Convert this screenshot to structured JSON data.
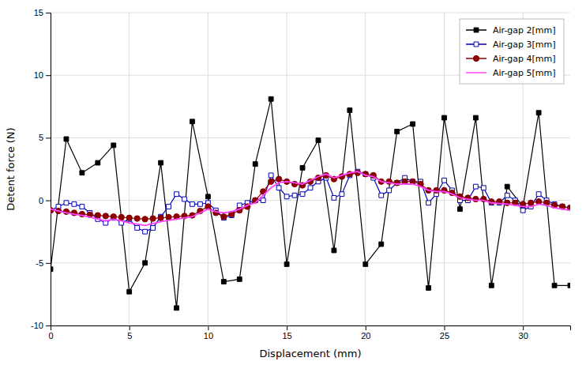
{
  "chart_data": {
    "type": "line",
    "x_label": "Displacement (mm)",
    "y_label": "Detent force (N)",
    "xlim": [
      0,
      33
    ],
    "ylim": [
      -10,
      15
    ],
    "xticks": [
      0,
      5,
      10,
      15,
      20,
      25,
      30
    ],
    "yticks": [
      -10,
      -5,
      0,
      5,
      10,
      15
    ],
    "grid": true,
    "legend": "upper right",
    "series": [
      {
        "name": "Air-gap 2[mm]",
        "color": "#000000",
        "marker": "square",
        "line_style": "solid",
        "x": [
          0,
          1,
          2,
          3,
          4,
          5,
          6,
          7,
          8,
          9,
          10,
          11,
          12,
          13,
          14,
          15,
          16,
          17,
          18,
          19,
          20,
          21,
          22,
          23,
          24,
          25,
          26,
          27,
          28,
          29,
          30,
          31,
          32,
          33
        ],
        "values": [
          -5.5,
          4.9,
          2.2,
          3.0,
          4.4,
          -7.3,
          -5.0,
          3.0,
          -8.6,
          6.3,
          0.3,
          -6.5,
          -6.3,
          2.9,
          8.1,
          -5.1,
          2.6,
          4.8,
          -4.0,
          7.2,
          -5.1,
          -3.5,
          5.5,
          6.1,
          -7.0,
          6.6,
          -0.7,
          6.6,
          -6.8,
          1.1,
          -0.5,
          7.0,
          -6.8,
          -6.8
        ]
      },
      {
        "name": "Air-gap 3[mm]",
        "color": "#0000bb",
        "marker": "open-square",
        "line_style": "solid",
        "x": [
          0,
          0.5,
          1,
          1.5,
          2,
          2.5,
          3,
          3.5,
          4,
          4.5,
          5,
          5.5,
          6,
          6.5,
          7,
          7.5,
          8,
          8.5,
          9,
          9.5,
          10,
          10.5,
          11,
          11.5,
          12,
          12.5,
          13,
          13.5,
          14,
          14.5,
          15,
          15.5,
          16,
          16.5,
          17,
          17.5,
          18,
          18.5,
          19,
          19.5,
          20,
          20.5,
          21,
          21.5,
          22,
          22.5,
          23,
          23.5,
          24,
          24.5,
          25,
          25.5,
          26,
          26.5,
          27,
          27.5,
          28,
          28.5,
          29,
          29.5,
          30,
          30.5,
          31,
          31.5,
          32,
          32.5,
          33
        ],
        "values": [
          -0.8,
          -0.5,
          -0.2,
          -0.3,
          -0.5,
          -1.0,
          -1.5,
          -1.8,
          -1.4,
          -1.8,
          -1.5,
          -2.2,
          -2.5,
          -2.2,
          -1.3,
          -0.5,
          0.5,
          0.1,
          -0.3,
          -0.3,
          -0.2,
          -0.8,
          -1.4,
          -1.2,
          -0.4,
          -0.2,
          0.0,
          0.0,
          2.0,
          1.0,
          0.3,
          0.4,
          0.5,
          1.0,
          1.5,
          1.8,
          0.2,
          0.5,
          2.0,
          2.3,
          2.1,
          1.8,
          0.4,
          0.8,
          1.4,
          1.8,
          1.5,
          1.5,
          -0.2,
          0.5,
          1.6,
          0.8,
          0.0,
          0.0,
          1.1,
          1.0,
          -0.2,
          -0.2,
          0.4,
          0.0,
          -0.8,
          -0.5,
          0.5,
          0.0,
          -0.3,
          -0.5,
          -0.6
        ]
      },
      {
        "name": "Air-gap 4[mm]",
        "color": "#8b0000",
        "marker": "circle",
        "line_style": "solid",
        "x": [
          0,
          0.5,
          1,
          1.5,
          2,
          2.5,
          3,
          3.5,
          4,
          4.5,
          5,
          5.5,
          6,
          6.5,
          7,
          7.5,
          8,
          8.5,
          9,
          9.5,
          10,
          10.5,
          11,
          11.5,
          12,
          12.5,
          13,
          13.5,
          14,
          14.5,
          15,
          15.5,
          16,
          16.5,
          17,
          17.5,
          18,
          18.5,
          19,
          19.5,
          20,
          20.5,
          21,
          21.5,
          22,
          22.5,
          23,
          23.5,
          24,
          24.5,
          25,
          25.5,
          26,
          26.5,
          27,
          27.5,
          28,
          28.5,
          29,
          29.5,
          30,
          30.5,
          31,
          31.5,
          32,
          32.5,
          33
        ],
        "values": [
          -0.8,
          -0.85,
          -0.9,
          -1.0,
          -1.1,
          -1.15,
          -1.2,
          -1.25,
          -1.3,
          -1.35,
          -1.4,
          -1.45,
          -1.5,
          -1.45,
          -1.4,
          -1.35,
          -1.3,
          -1.25,
          -1.2,
          -0.85,
          -0.5,
          -1.0,
          -1.3,
          -1.1,
          -0.8,
          -0.5,
          0.0,
          0.7,
          1.5,
          1.7,
          1.5,
          1.3,
          1.2,
          1.5,
          1.8,
          2.0,
          1.7,
          1.9,
          2.1,
          2.2,
          2.1,
          2.0,
          1.5,
          1.5,
          1.4,
          1.5,
          1.5,
          1.3,
          0.8,
          0.8,
          0.8,
          0.6,
          0.3,
          0.2,
          0.1,
          0.1,
          -0.1,
          -0.1,
          -0.2,
          -0.2,
          -0.3,
          -0.2,
          -0.1,
          -0.2,
          -0.4,
          -0.5,
          -0.6
        ]
      },
      {
        "name": "Air-gap 5[mm]",
        "color": "#ff44ff",
        "marker": "none",
        "line_style": "solid",
        "x": [
          0,
          0.5,
          1,
          1.5,
          2,
          2.5,
          3,
          3.5,
          4,
          4.5,
          5,
          5.5,
          6,
          6.5,
          7,
          7.5,
          8,
          8.5,
          9,
          9.5,
          10,
          10.5,
          11,
          11.5,
          12,
          12.5,
          13,
          13.5,
          14,
          14.5,
          15,
          15.5,
          16,
          16.5,
          17,
          17.5,
          18,
          18.5,
          19,
          19.5,
          20,
          20.5,
          21,
          21.5,
          22,
          22.5,
          23,
          23.5,
          24,
          24.5,
          25,
          25.5,
          26,
          26.5,
          27,
          27.5,
          28,
          28.5,
          29,
          29.5,
          30,
          30.5,
          31,
          31.5,
          32,
          32.5,
          33
        ],
        "values": [
          -0.7,
          -0.85,
          -1.0,
          -1.1,
          -1.2,
          -1.35,
          -1.5,
          -1.65,
          -1.5,
          -1.65,
          -1.8,
          -1.9,
          -2.0,
          -1.85,
          -1.7,
          -1.6,
          -1.5,
          -1.4,
          -1.3,
          -1.0,
          -0.7,
          -0.9,
          -1.0,
          -0.9,
          -0.7,
          -0.4,
          -0.2,
          0.4,
          1.0,
          1.4,
          1.5,
          1.4,
          1.3,
          1.6,
          1.9,
          2.1,
          1.8,
          2.0,
          2.2,
          2.3,
          2.0,
          1.9,
          1.5,
          1.4,
          1.3,
          1.3,
          1.3,
          1.1,
          0.8,
          0.7,
          0.7,
          0.5,
          0.2,
          0.1,
          0.0,
          0.0,
          -0.2,
          -0.25,
          -0.3,
          -0.4,
          -0.5,
          -0.5,
          -0.3,
          -0.4,
          -0.6,
          -0.7,
          -0.8
        ]
      }
    ]
  }
}
